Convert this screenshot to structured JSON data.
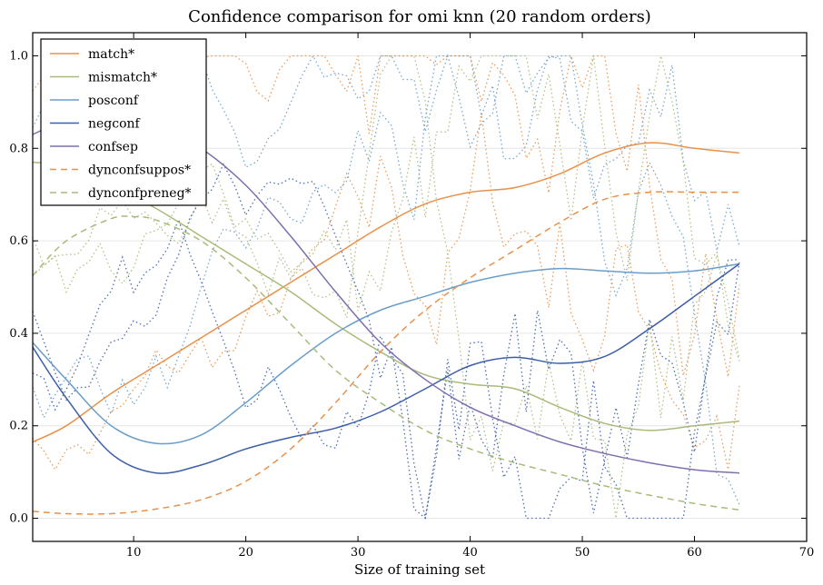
{
  "chart_data": {
    "type": "line",
    "title": "Confidence comparison for omi knn (20 random orders)",
    "xlabel": "Size of training set",
    "ylabel": "",
    "xlim": [
      1,
      70
    ],
    "ylim": [
      -0.05,
      1.05
    ],
    "xticks": [
      10,
      20,
      30,
      40,
      50,
      60,
      70
    ],
    "yticks": [
      0.0,
      0.2,
      0.4,
      0.6,
      0.8,
      1.0
    ],
    "xtick_labels": [
      "10",
      "20",
      "30",
      "40",
      "50",
      "60",
      "70"
    ],
    "ytick_labels": [
      "0.0",
      "0.2",
      "0.4",
      "0.6",
      "0.8",
      "1.0"
    ],
    "grid": "horizontal",
    "legend": {
      "location": "upper-left"
    },
    "colors": {
      "orange": "#e8914a",
      "olive": "#a8bb7a",
      "lightblue": "#6a9ec9",
      "darkblue": "#3b5ea8",
      "purple": "#7f6fae"
    },
    "series": [
      {
        "name": "match*",
        "color": "#e8914a",
        "dash": "solid",
        "x": [
          1,
          4,
          8,
          12,
          16,
          20,
          24,
          28,
          32,
          36,
          40,
          44,
          48,
          52,
          56,
          60,
          64
        ],
        "y": [
          0.165,
          0.2,
          0.27,
          0.33,
          0.39,
          0.45,
          0.51,
          0.57,
          0.63,
          0.68,
          0.705,
          0.715,
          0.745,
          0.79,
          0.812,
          0.8,
          0.79
        ]
      },
      {
        "name": "mismatch*",
        "color": "#a8bb7a",
        "dash": "solid",
        "x": [
          1,
          4,
          8,
          12,
          16,
          20,
          24,
          28,
          32,
          36,
          40,
          44,
          48,
          52,
          56,
          60,
          64
        ],
        "y": [
          0.77,
          0.76,
          0.72,
          0.67,
          0.61,
          0.55,
          0.49,
          0.42,
          0.36,
          0.31,
          0.29,
          0.28,
          0.24,
          0.205,
          0.19,
          0.2,
          0.21
        ]
      },
      {
        "name": "posconf",
        "color": "#6a9ec9",
        "dash": "solid",
        "x": [
          1,
          4,
          8,
          12,
          16,
          20,
          24,
          28,
          32,
          36,
          40,
          44,
          48,
          52,
          56,
          60,
          64
        ],
        "y": [
          0.38,
          0.3,
          0.2,
          0.162,
          0.18,
          0.25,
          0.33,
          0.4,
          0.45,
          0.48,
          0.51,
          0.53,
          0.54,
          0.535,
          0.53,
          0.535,
          0.55
        ]
      },
      {
        "name": "negconf",
        "color": "#3b5ea8",
        "dash": "solid",
        "x": [
          1,
          4,
          8,
          12,
          16,
          20,
          24,
          28,
          32,
          36,
          40,
          44,
          48,
          52,
          56,
          60,
          64
        ],
        "y": [
          0.37,
          0.26,
          0.14,
          0.098,
          0.115,
          0.15,
          0.175,
          0.195,
          0.23,
          0.28,
          0.33,
          0.348,
          0.335,
          0.35,
          0.41,
          0.48,
          0.55
        ]
      },
      {
        "name": "confsep",
        "color": "#7f6fae",
        "dash": "solid",
        "x": [
          1,
          4,
          8,
          12,
          16,
          20,
          24,
          28,
          32,
          36,
          40,
          44,
          48,
          52,
          56,
          60,
          64
        ],
        "y": [
          0.83,
          0.86,
          0.87,
          0.85,
          0.8,
          0.72,
          0.61,
          0.49,
          0.38,
          0.3,
          0.24,
          0.2,
          0.165,
          0.14,
          0.12,
          0.105,
          0.098
        ]
      },
      {
        "name": "dynconfsuppos*",
        "color": "#e8914a",
        "dash": "dashed",
        "x": [
          1,
          4,
          8,
          12,
          16,
          20,
          24,
          28,
          32,
          36,
          40,
          44,
          48,
          52,
          56,
          60,
          64
        ],
        "y": [
          0.015,
          0.01,
          0.01,
          0.02,
          0.04,
          0.08,
          0.15,
          0.25,
          0.36,
          0.45,
          0.52,
          0.58,
          0.64,
          0.69,
          0.705,
          0.705,
          0.705
        ]
      },
      {
        "name": "dynconfpreneg*",
        "color": "#a8bb7a",
        "dash": "dashed",
        "x": [
          1,
          4,
          8,
          10,
          12,
          16,
          20,
          24,
          28,
          32,
          36,
          40,
          44,
          48,
          52,
          56,
          60,
          64
        ],
        "y": [
          0.525,
          0.6,
          0.648,
          0.652,
          0.645,
          0.6,
          0.52,
          0.42,
          0.32,
          0.25,
          0.19,
          0.15,
          0.12,
          0.095,
          0.07,
          0.05,
          0.032,
          0.018
        ]
      }
    ]
  }
}
